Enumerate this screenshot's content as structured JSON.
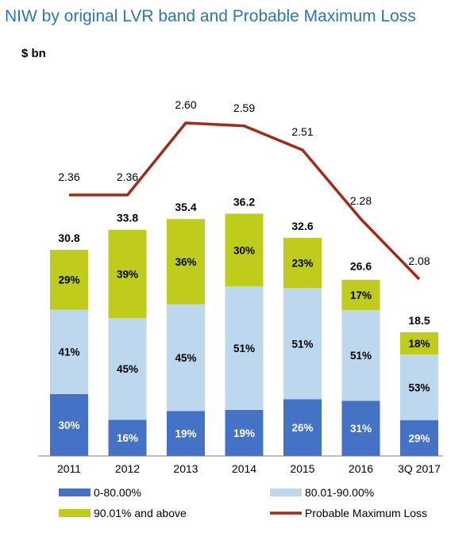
{
  "chart_data": {
    "type": "bar",
    "stacked": true,
    "title": "NIW by original LVR band and Probable Maximum Loss",
    "ylabel": "$ bn",
    "categories": [
      "2011",
      "2012",
      "2013",
      "2014",
      "2015",
      "2016",
      "3Q 2017"
    ],
    "totals": [
      30.8,
      33.8,
      35.4,
      36.2,
      32.6,
      26.6,
      18.5
    ],
    "total_labels": [
      "30.8",
      "33.8",
      "35.4",
      "36.2",
      "32.6",
      "26.6",
      "18.5"
    ],
    "series": [
      {
        "name": "0-80.00%",
        "color": "#4472c4",
        "text_color": "#ffffff",
        "shares": [
          30,
          16,
          19,
          19,
          26,
          31,
          29
        ],
        "labels": [
          "30%",
          "16%",
          "19%",
          "19%",
          "26%",
          "31%",
          "29%"
        ]
      },
      {
        "name": "80.01-90.00%",
        "color": "#bdd7ee",
        "text_color": "#000000",
        "shares": [
          41,
          45,
          45,
          51,
          51,
          51,
          53
        ],
        "labels": [
          "41%",
          "45%",
          "45%",
          "51%",
          "51%",
          "51%",
          "53%"
        ]
      },
      {
        "name": "90.01% and above",
        "color": "#c0cc1c",
        "text_color": "#000000",
        "shares": [
          29,
          39,
          36,
          30,
          23,
          17,
          18
        ],
        "labels": [
          "29%",
          "39%",
          "36%",
          "30%",
          "23%",
          "17%",
          "18%"
        ]
      }
    ],
    "line_series": {
      "name": "Probable Maximum Loss",
      "color": "#a32a14",
      "values": [
        2.36,
        2.36,
        2.6,
        2.59,
        2.51,
        2.28,
        2.08
      ],
      "labels": [
        "2.36",
        "2.36",
        "2.60",
        "2.59",
        "2.51",
        "2.28",
        "2.08"
      ]
    },
    "ylim": [
      0,
      50
    ],
    "line_ylim": [
      1.8,
      2.75
    ],
    "grid": false,
    "legend": [
      "0-80.00%",
      "80.01-90.00%",
      "90.01% and above",
      "Probable Maximum Loss"
    ]
  }
}
